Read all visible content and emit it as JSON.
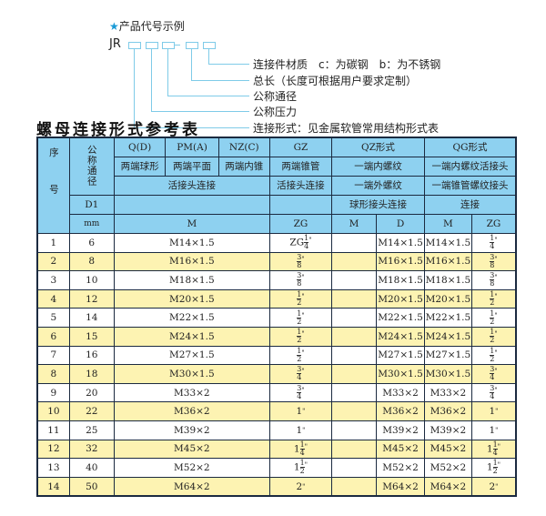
{
  "example": {
    "heading": "产品代号示例",
    "star_icon": "star-icon",
    "code_prefix": "JR",
    "legend": [
      "连接件材质　c：为碳钢　b：为不锈钢",
      "总长（长度可根据用户要求定制）",
      "公称通径",
      "公称压力",
      "连接形式：见金属软管常用结构形式表"
    ]
  },
  "table_title": "螺母连接形式参考表",
  "header": {
    "seq": "序号",
    "dn": "公称通径",
    "d1": "D1",
    "mm": "mm",
    "row1": [
      "Q(D)",
      "PM(A)",
      "NZ(C)",
      "GZ",
      "QZ形式",
      "QG形式"
    ],
    "row2": [
      "两端球形",
      "两端平面",
      "两端内锥",
      "两端锥管",
      "一端内螺纹",
      "一端内螺纹活接头"
    ],
    "row3": [
      "活接头连接",
      "活接头连接",
      "一端外螺纹",
      "一端锥管螺纹接头"
    ],
    "row4": [
      "",
      "",
      "球形接头连接",
      "连接"
    ],
    "row5": [
      "M",
      "ZG",
      "M",
      "D",
      "M",
      "ZG"
    ]
  },
  "rows": [
    {
      "no": "1",
      "d1": "6",
      "m": "M14×1.5",
      "zg": {
        "w": "ZG",
        "n": "1",
        "d": "4"
      },
      "qzm": "",
      "qzd": "M14×1.5",
      "qgm": "M14×1.5",
      "qgzg": {
        "w": "",
        "n": "1",
        "d": "4"
      }
    },
    {
      "no": "2",
      "d1": "8",
      "m": "M16×1.5",
      "zg": {
        "w": "",
        "n": "3",
        "d": "8"
      },
      "qzm": "",
      "qzd": "M16×1.5",
      "qgm": "M16×1.5",
      "qgzg": {
        "w": "",
        "n": "3",
        "d": "8"
      }
    },
    {
      "no": "3",
      "d1": "10",
      "m": "M18×1.5",
      "zg": {
        "w": "",
        "n": "3",
        "d": "8"
      },
      "qzm": "",
      "qzd": "M18×1.5",
      "qgm": "M18×1.5",
      "qgzg": {
        "w": "",
        "n": "3",
        "d": "8"
      }
    },
    {
      "no": "4",
      "d1": "12",
      "m": "M20×1.5",
      "zg": {
        "w": "",
        "n": "1",
        "d": "2"
      },
      "qzm": "",
      "qzd": "M20×1.5",
      "qgm": "M20×1.5",
      "qgzg": {
        "w": "",
        "n": "1",
        "d": "2"
      }
    },
    {
      "no": "5",
      "d1": "14",
      "m": "M22×1.5",
      "zg": {
        "w": "",
        "n": "1",
        "d": "2"
      },
      "qzm": "",
      "qzd": "M22×1.5",
      "qgm": "M22×1.5",
      "qgzg": {
        "w": "",
        "n": "1",
        "d": "2"
      }
    },
    {
      "no": "6",
      "d1": "15",
      "m": "M24×1.5",
      "zg": {
        "w": "",
        "n": "1",
        "d": "2"
      },
      "qzm": "",
      "qzd": "M24×1.5",
      "qgm": "M24×1.5",
      "qgzg": {
        "w": "",
        "n": "1",
        "d": "2"
      }
    },
    {
      "no": "7",
      "d1": "16",
      "m": "M27×1.5",
      "zg": {
        "w": "",
        "n": "1",
        "d": "2"
      },
      "qzm": "",
      "qzd": "M27×1.5",
      "qgm": "M27×1.5",
      "qgzg": {
        "w": "",
        "n": "1",
        "d": "2"
      }
    },
    {
      "no": "8",
      "d1": "18",
      "m": "M30×1.5",
      "zg": {
        "w": "",
        "n": "3",
        "d": "4"
      },
      "qzm": "",
      "qzd": "M30×1.5",
      "qgm": "M30×1.5",
      "qgzg": {
        "w": "",
        "n": "3",
        "d": "4"
      }
    },
    {
      "no": "9",
      "d1": "20",
      "m": "M33×2",
      "zg": {
        "w": "",
        "n": "3",
        "d": "4"
      },
      "qzm": "",
      "qzd": "M33×2",
      "qgm": "M33×2",
      "qgzg": {
        "w": "",
        "n": "3",
        "d": "4"
      }
    },
    {
      "no": "10",
      "d1": "22",
      "m": "M36×2",
      "zg": {
        "w": "1"
      },
      "qzm": "",
      "qzd": "M36×2",
      "qgm": "M36×2",
      "qgzg": {
        "w": "1"
      }
    },
    {
      "no": "11",
      "d1": "25",
      "m": "M39×2",
      "zg": {
        "w": "1"
      },
      "qzm": "",
      "qzd": "M39×2",
      "qgm": "M39×2",
      "qgzg": {
        "w": "1"
      }
    },
    {
      "no": "12",
      "d1": "32",
      "m": "M45×2",
      "zg": {
        "w": "1",
        "n": "1",
        "d": "4"
      },
      "qzm": "",
      "qzd": "M45×2",
      "qgm": "M45×2",
      "qgzg": {
        "w": "1",
        "n": "1",
        "d": "4"
      }
    },
    {
      "no": "13",
      "d1": "40",
      "m": "M52×2",
      "zg": {
        "w": "1",
        "n": "1",
        "d": "2"
      },
      "qzm": "",
      "qzd": "M52×2",
      "qgm": "M52×2",
      "qgzg": {
        "w": "1",
        "n": "1",
        "d": "2"
      }
    },
    {
      "no": "14",
      "d1": "50",
      "m": "M64×2",
      "zg": {
        "w": "2"
      },
      "qzm": "",
      "qzd": "M64×2",
      "qgm": "M64×2",
      "qgzg": {
        "w": "2"
      }
    }
  ],
  "colors": {
    "header_bg": "#8ed1f0",
    "stripe": "#fdf3b2",
    "border": "#1b2a40",
    "leader": "#7fcbe8"
  }
}
